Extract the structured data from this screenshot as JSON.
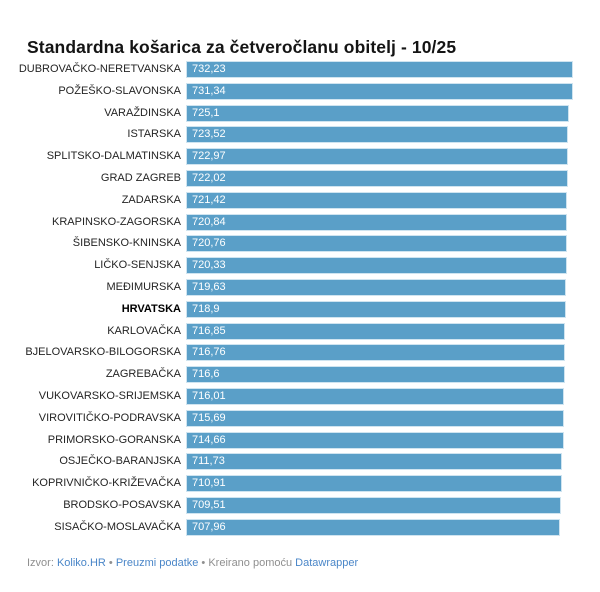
{
  "title": "Standardna košarica za četveročlanu obitelj - 10/25",
  "colors": {
    "bar_fill": "#5a9fc8",
    "bar_edge": "#cfe4f0",
    "value_text": "#ffffff",
    "label_text": "#242424",
    "footer_text": "#8f8f8f",
    "footer_link": "#4a86c8"
  },
  "chart_data": {
    "type": "bar",
    "orientation": "horizontal",
    "title": "Standardna košarica za četveročlanu obitelj - 10/25",
    "xlabel": "",
    "ylabel": "",
    "xlim": [
      0,
      732.23
    ],
    "grid": false,
    "legend": false,
    "categories": [
      "DUBROVAČKO-NERETVANSKA",
      "POŽEŠKO-SLAVONSKA",
      "VARAŽDINSKA",
      "ISTARSKA",
      "SPLITSKO-DALMATINSKA",
      "GRAD ZAGREB",
      "ZADARSKA",
      "KRAPINSKO-ZAGORSKA",
      "ŠIBENSKO-KNINSKA",
      "LIČKO-SENJSKA",
      "MEĐIMURSKA",
      "HRVATSKA",
      "KARLOVAČKA",
      "BJELOVARSKO-BILOGORSKA",
      "ZAGREBAČKA",
      "VUKOVARSKO-SRIJEMSKA",
      "VIROVITIČKO-PODRAVSKA",
      "PRIMORSKO-GORANSKA",
      "OSJEČKO-BARANJSKA",
      "KOPRIVNIČKO-KRIŽEVAČKA",
      "BRODSKO-POSAVSKA",
      "SISAČKO-MOSLAVAČKA"
    ],
    "values": [
      732.23,
      731.34,
      725.1,
      723.52,
      722.97,
      722.02,
      721.42,
      720.84,
      720.76,
      720.33,
      719.63,
      718.9,
      716.85,
      716.76,
      716.6,
      716.01,
      715.69,
      714.66,
      711.73,
      710.91,
      709.51,
      707.96
    ],
    "value_labels": [
      "732,23",
      "731,34",
      "725,1",
      "723,52",
      "722,97",
      "722,02",
      "721,42",
      "720,84",
      "720,76",
      "720,33",
      "719,63",
      "718,9",
      "716,85",
      "716,76",
      "716,6",
      "716,01",
      "715,69",
      "714,66",
      "711,73",
      "710,91",
      "709,51",
      "707,96"
    ],
    "bold_index": 11
  },
  "footer": {
    "segments": [
      {
        "type": "text",
        "text": "Izvor: ",
        "name": "source-prefix"
      },
      {
        "type": "link",
        "text": "Koliko.HR",
        "name": "source-link"
      },
      {
        "type": "text",
        "text": " • ",
        "name": "separator"
      },
      {
        "type": "link",
        "text": "Preuzmi podatke",
        "name": "download-data-link"
      },
      {
        "type": "text",
        "text": " • ",
        "name": "separator"
      },
      {
        "type": "text",
        "text": "Kreirano pomoću ",
        "name": "created-with-prefix"
      },
      {
        "type": "link",
        "text": "Datawrapper",
        "name": "datawrapper-link"
      }
    ]
  }
}
